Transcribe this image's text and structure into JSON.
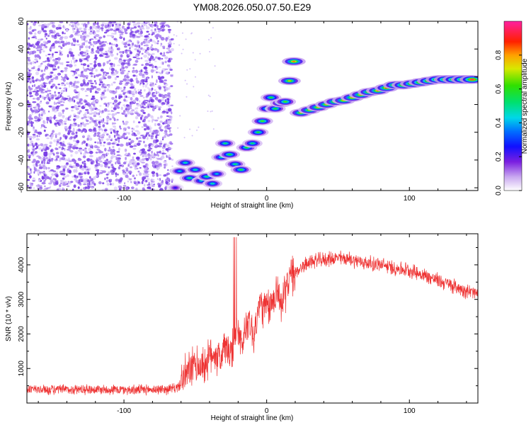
{
  "title": "YM08.2026.050.07.50.E29",
  "chart_data": [
    {
      "type": "heatmap",
      "xlabel": "Height of straight line (km)",
      "ylabel": "Frequency (Hz)",
      "xlim": [
        -168,
        148
      ],
      "ylim": [
        -62,
        60
      ],
      "xticks": [
        -100,
        0,
        100
      ],
      "yticks": [
        60,
        40,
        20,
        0,
        -20,
        -40,
        -60
      ],
      "colorbar": {
        "label": "Normalized spectral amplitude",
        "range": [
          0,
          1
        ],
        "ticks": [
          0.0,
          0.2,
          0.4,
          0.6,
          0.8
        ]
      },
      "track": [
        {
          "x": -64,
          "y": -60,
          "a": 0.25
        },
        {
          "x": -61,
          "y": -48,
          "a": 0.45
        },
        {
          "x": -57,
          "y": -42,
          "a": 0.5
        },
        {
          "x": -54,
          "y": -53,
          "a": 0.55
        },
        {
          "x": -50,
          "y": -47,
          "a": 0.5
        },
        {
          "x": -46,
          "y": -55,
          "a": 0.45
        },
        {
          "x": -42,
          "y": -52,
          "a": 0.55
        },
        {
          "x": -38,
          "y": -57,
          "a": 0.5
        },
        {
          "x": -35,
          "y": -50,
          "a": 0.45
        },
        {
          "x": -32,
          "y": -38,
          "a": 0.5
        },
        {
          "x": -29,
          "y": -28,
          "a": 0.55
        },
        {
          "x": -26,
          "y": -36,
          "a": 0.6
        },
        {
          "x": -22,
          "y": -43,
          "a": 0.55
        },
        {
          "x": -18,
          "y": -47,
          "a": 0.6
        },
        {
          "x": -14,
          "y": -31,
          "a": 0.6
        },
        {
          "x": -10,
          "y": -28,
          "a": 0.55
        },
        {
          "x": -6,
          "y": -20,
          "a": 0.6
        },
        {
          "x": -3,
          "y": -12,
          "a": 0.65
        },
        {
          "x": 0,
          "y": -3,
          "a": 0.55
        },
        {
          "x": 3,
          "y": 5,
          "a": 0.6
        },
        {
          "x": 6,
          "y": -3,
          "a": 0.6
        },
        {
          "x": 10,
          "y": 1,
          "a": 0.7
        },
        {
          "x": 13,
          "y": 2,
          "a": 0.65
        },
        {
          "x": 16,
          "y": 17,
          "a": 0.75
        },
        {
          "x": 19,
          "y": 31,
          "a": 0.85
        },
        {
          "x": 24,
          "y": -6,
          "a": 0.75
        },
        {
          "x": 30,
          "y": -4,
          "a": 0.75
        },
        {
          "x": 36,
          "y": -2,
          "a": 0.78
        },
        {
          "x": 42,
          "y": 0,
          "a": 0.78
        },
        {
          "x": 48,
          "y": 2,
          "a": 0.8
        },
        {
          "x": 54,
          "y": 3,
          "a": 0.8
        },
        {
          "x": 60,
          "y": 5,
          "a": 0.82
        },
        {
          "x": 66,
          "y": 7,
          "a": 0.82
        },
        {
          "x": 72,
          "y": 9,
          "a": 0.84
        },
        {
          "x": 78,
          "y": 10,
          "a": 0.85
        },
        {
          "x": 84,
          "y": 12,
          "a": 0.88
        },
        {
          "x": 90,
          "y": 14,
          "a": 0.88
        },
        {
          "x": 96,
          "y": 14,
          "a": 0.9
        },
        {
          "x": 102,
          "y": 15,
          "a": 0.9
        },
        {
          "x": 108,
          "y": 16,
          "a": 0.92
        },
        {
          "x": 114,
          "y": 17,
          "a": 0.92
        },
        {
          "x": 120,
          "y": 18,
          "a": 0.95
        },
        {
          "x": 126,
          "y": 18,
          "a": 0.97
        },
        {
          "x": 132,
          "y": 18,
          "a": 0.98
        },
        {
          "x": 138,
          "y": 18,
          "a": 0.98
        },
        {
          "x": 144,
          "y": 18,
          "a": 0.97
        }
      ]
    },
    {
      "type": "line",
      "xlabel": "Height of straight line (km)",
      "ylabel": "SNR (10 * v/v)",
      "xlim": [
        -168,
        148
      ],
      "ylim": [
        0,
        4900
      ],
      "xticks": [
        -100,
        0,
        100
      ],
      "yticks": [
        1000,
        2000,
        3000,
        4000
      ],
      "color": "#ee3333",
      "series": [
        {
          "x": [
            -168,
            -150,
            -130,
            -110,
            -90,
            -70,
            -62,
            -57,
            -53,
            -49,
            -45,
            -41,
            -37,
            -33,
            -29,
            -25,
            -21,
            -17,
            -13,
            -9,
            -5,
            -1,
            3,
            7,
            11,
            15,
            19,
            23,
            27,
            31,
            40,
            50,
            60,
            70,
            80,
            90,
            100,
            110,
            120,
            130,
            140,
            148
          ],
          "y": [
            400,
            380,
            400,
            390,
            380,
            400,
            450,
            800,
            1000,
            1100,
            1050,
            1250,
            1500,
            1250,
            1650,
            1300,
            2200,
            1700,
            2500,
            1900,
            2900,
            2700,
            2800,
            3300,
            2800,
            3600,
            3700,
            3900,
            4000,
            4100,
            4150,
            4200,
            4150,
            4050,
            4000,
            3900,
            3850,
            3700,
            3550,
            3400,
            3250,
            3150
          ]
        }
      ]
    }
  ]
}
